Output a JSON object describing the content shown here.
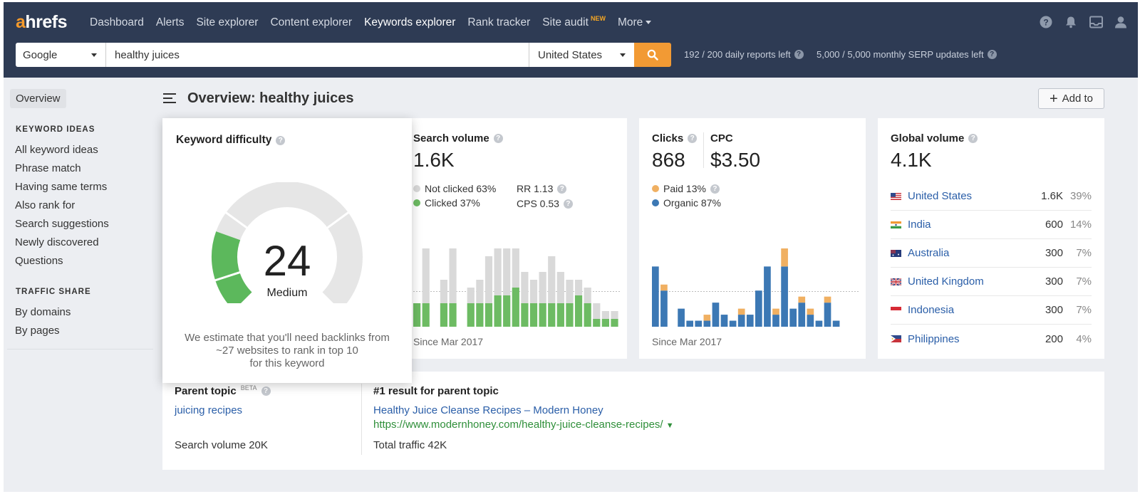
{
  "app": {
    "logo": "ahrefs"
  },
  "nav": {
    "items": [
      {
        "label": "Dashboard"
      },
      {
        "label": "Alerts"
      },
      {
        "label": "Site explorer"
      },
      {
        "label": "Content explorer"
      },
      {
        "label": "Keywords explorer"
      },
      {
        "label": "Rank tracker"
      },
      {
        "label": "Site audit",
        "badge": "NEW"
      },
      {
        "label": "More"
      }
    ],
    "icons": [
      "help-icon",
      "bell-icon",
      "inbox-icon",
      "user-icon"
    ]
  },
  "search": {
    "engine": "Google",
    "query": "healthy juices",
    "country": "United States",
    "quota_reports": "192 / 200 daily reports left",
    "quota_serp": "5,000 / 5,000 monthly SERP updates left"
  },
  "sidebar": {
    "overview": "Overview",
    "keyword_ideas_heading": "KEYWORD IDEAS",
    "keyword_ideas": [
      "All keyword ideas",
      "Phrase match",
      "Having same terms",
      "Also rank for",
      "Search suggestions",
      "Newly discovered",
      "Questions"
    ],
    "traffic_share_heading": "TRAFFIC SHARE",
    "traffic_share": [
      "By domains",
      "By pages"
    ]
  },
  "header": {
    "title": "Overview: healthy juices",
    "add_to": "Add to"
  },
  "kd": {
    "title": "Keyword difficulty",
    "value": 24,
    "value_text": "24",
    "label": "Medium",
    "note_lines": [
      "We estimate that you'll need backlinks from",
      "~27 websites to rank in top 10",
      "for this keyword"
    ],
    "colors": {
      "fill": "#5cb85c",
      "track": "#e6e6e6"
    }
  },
  "search_volume": {
    "title": "Search volume",
    "value": "1.6K",
    "not_clicked": "Not clicked 63%",
    "clicked": "Clicked 37%",
    "rr": "RR 1.13",
    "cps": "CPS 0.53",
    "since": "Since Mar 2017",
    "colors": {
      "not_clicked": "#d9d9d9",
      "clicked": "#6dbb63"
    }
  },
  "clicks": {
    "title": "Clicks",
    "value": "868",
    "cpc_title": "CPC",
    "cpc_value": "$3.50",
    "paid": "Paid 13%",
    "organic": "Organic 87%",
    "since": "Since Mar 2017",
    "colors": {
      "paid": "#f0b062",
      "organic": "#3c78b4"
    }
  },
  "global_volume": {
    "title": "Global volume",
    "value": "4.1K",
    "countries": [
      {
        "name": "United States",
        "volume": "1.6K",
        "pct": "39%",
        "flag": "us-flag"
      },
      {
        "name": "India",
        "volume": "600",
        "pct": "14%",
        "flag": "in-flag"
      },
      {
        "name": "Australia",
        "volume": "300",
        "pct": "7%",
        "flag": "au-flag"
      },
      {
        "name": "United Kingdom",
        "volume": "300",
        "pct": "7%",
        "flag": "uk-flag"
      },
      {
        "name": "Indonesia",
        "volume": "300",
        "pct": "7%",
        "flag": "id-flag"
      },
      {
        "name": "Philippines",
        "volume": "200",
        "pct": "4%",
        "flag": "ph-flag"
      }
    ]
  },
  "parent_topic": {
    "title": "Parent topic",
    "badge": "BETA",
    "topic": "juicing recipes",
    "search_volume": "Search volume 20K",
    "result_title": "#1 result for parent topic",
    "result_link": "Healthy Juice Cleanse Recipes – Modern Honey",
    "result_url": "https://www.modernhoney.com/healthy-juice-cleanse-recipes/",
    "total_traffic": "Total traffic 42K"
  },
  "chart_data": [
    {
      "type": "bar",
      "title": "Search volume",
      "stacked": true,
      "series": [
        {
          "name": "Clicked",
          "values": [
            3,
            3,
            0,
            3,
            3,
            0,
            3,
            3,
            3,
            4,
            4,
            5,
            3,
            3,
            3,
            3,
            3,
            3,
            4,
            3,
            1,
            1,
            1
          ]
        },
        {
          "name": "Not clicked",
          "values": [
            0,
            7,
            0,
            3,
            7,
            0,
            2,
            3,
            6,
            6,
            6,
            5,
            4,
            3,
            4,
            6,
            4,
            3,
            2,
            2,
            2,
            1,
            1
          ]
        }
      ],
      "grid": false
    },
    {
      "type": "bar",
      "title": "Clicks",
      "stacked": true,
      "series": [
        {
          "name": "Organic",
          "values": [
            10,
            6,
            0,
            3,
            1,
            1,
            1,
            4,
            2,
            1,
            2,
            2,
            6,
            10,
            2,
            10,
            3,
            4,
            2,
            1,
            4,
            1,
            0,
            0
          ]
        },
        {
          "name": "Paid",
          "values": [
            0,
            1,
            0,
            0,
            0,
            0,
            1,
            0,
            0,
            0,
            1,
            0,
            0,
            0,
            1,
            3,
            0,
            1,
            1,
            0,
            1,
            0,
            0,
            0
          ]
        }
      ],
      "grid": false
    }
  ]
}
